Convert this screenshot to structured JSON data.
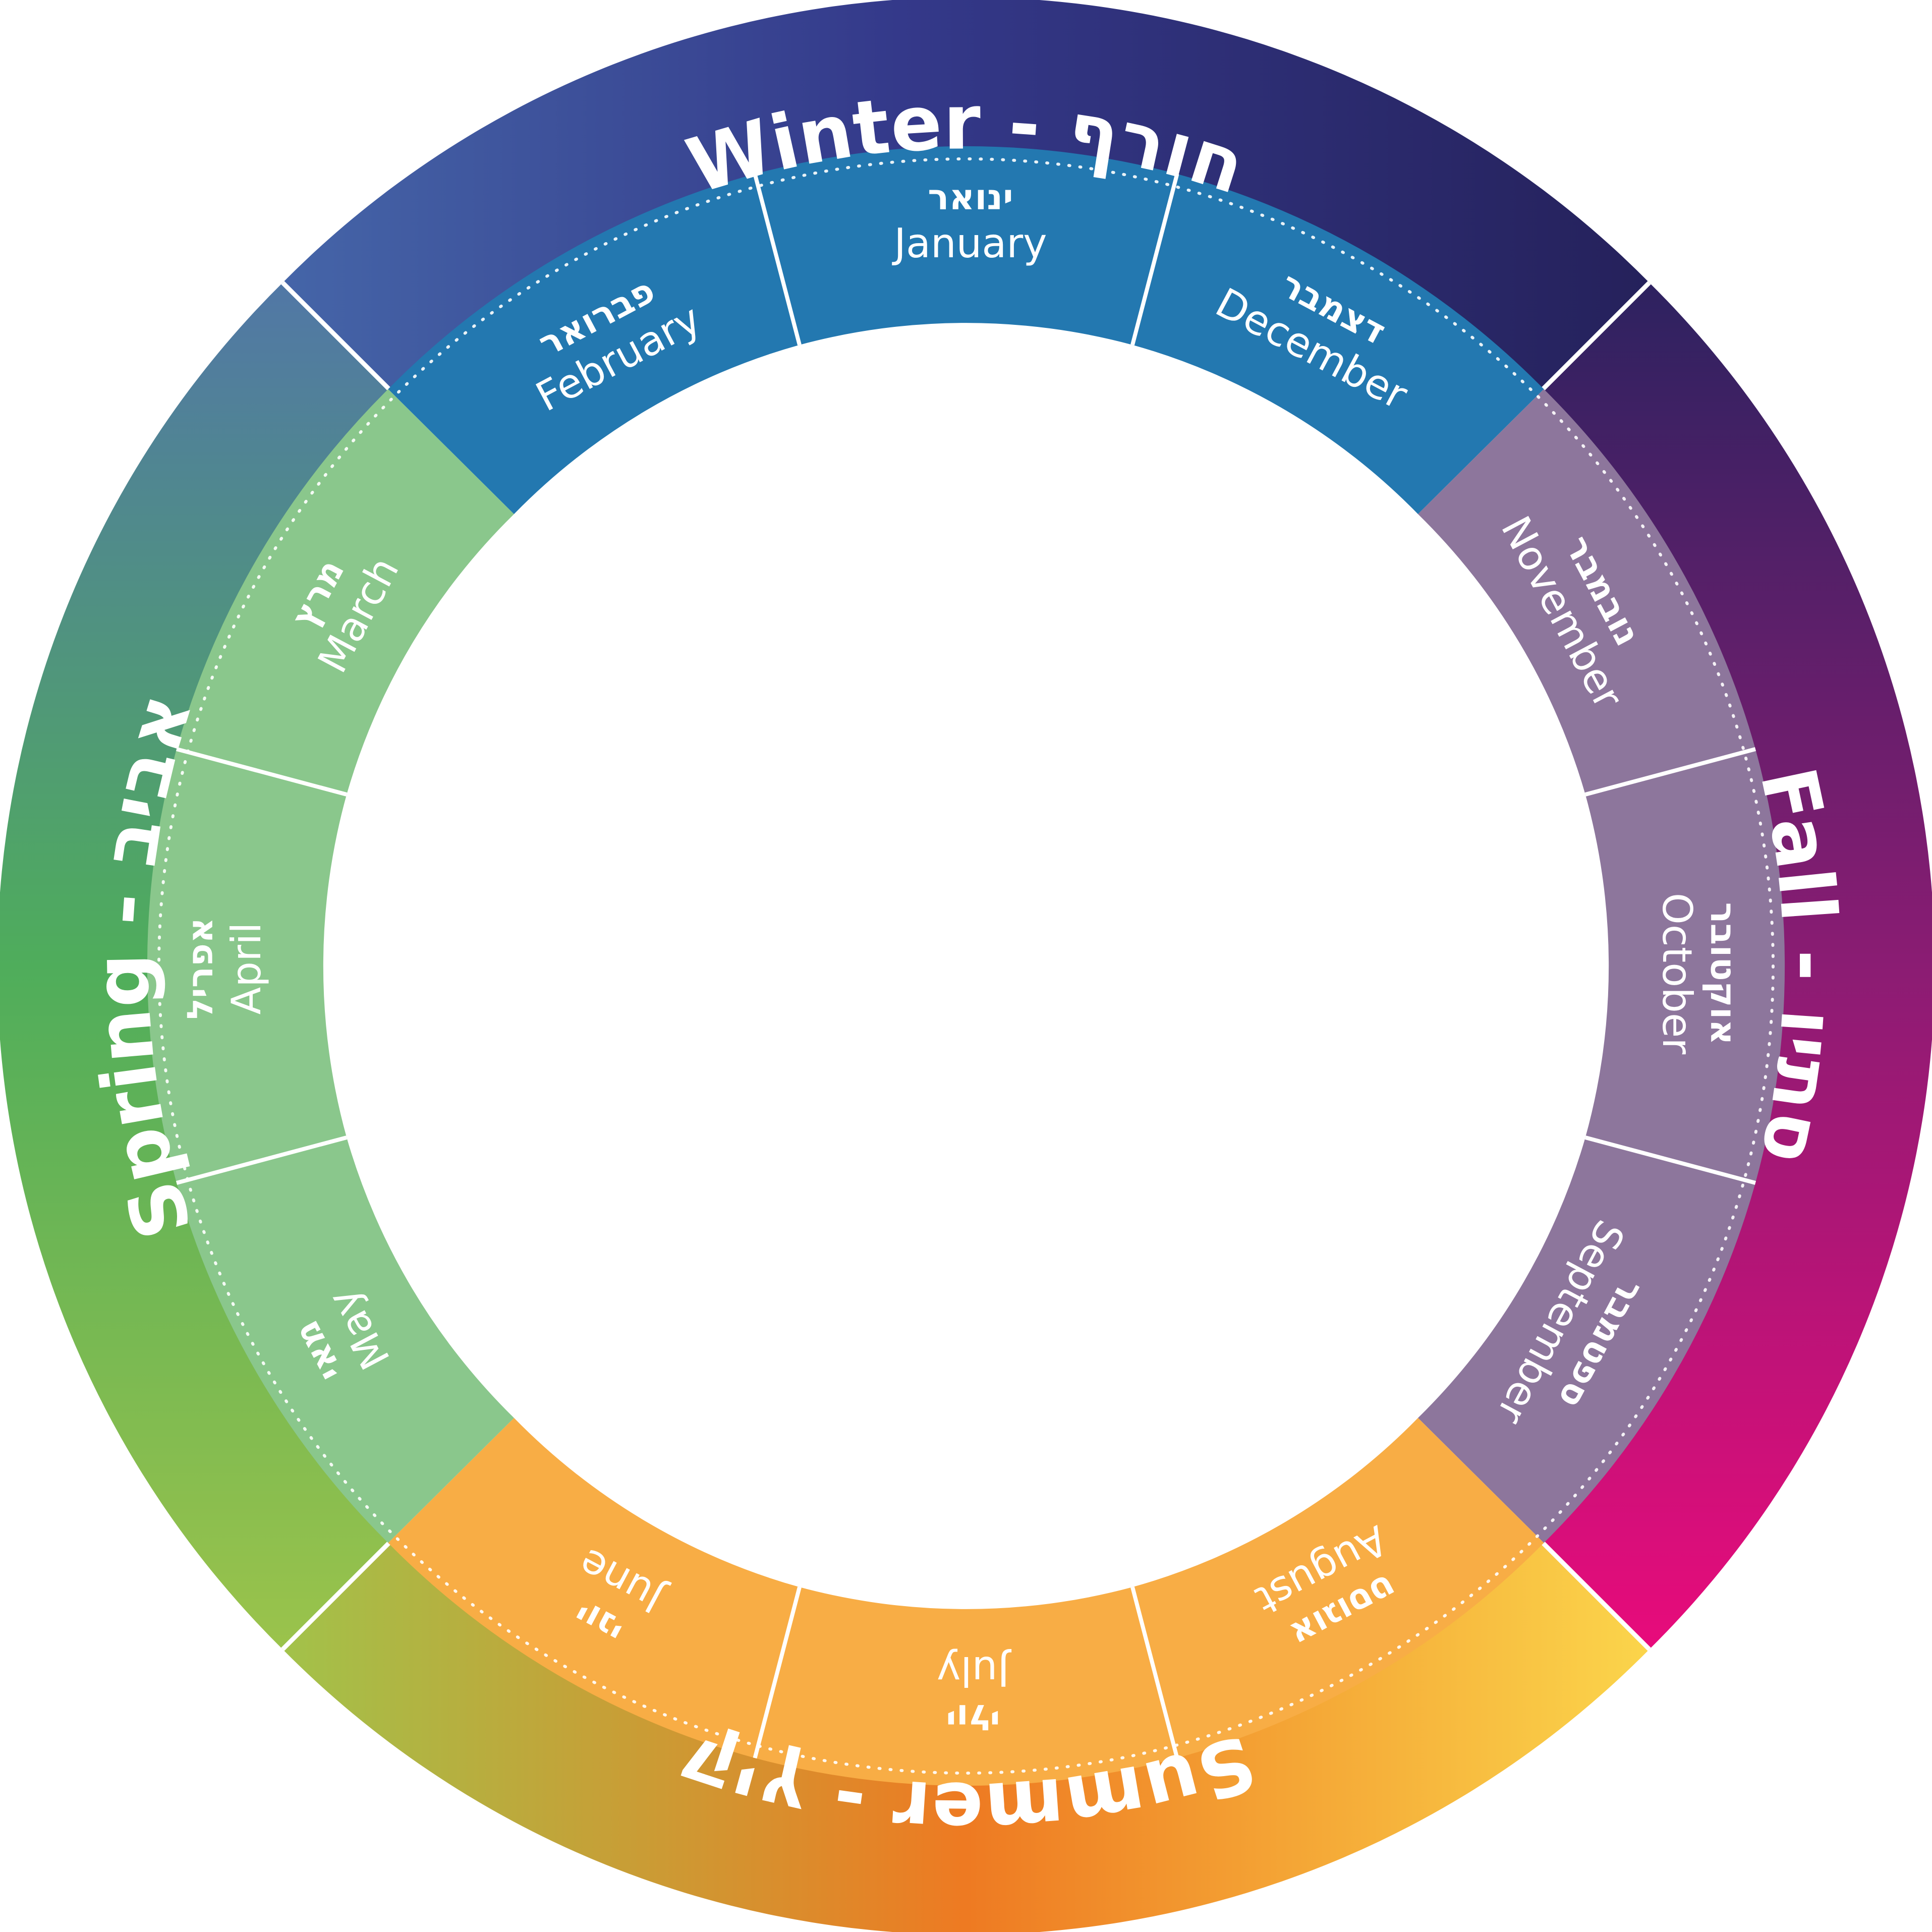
{
  "seasons": [
    {
      "id": "winter",
      "label": "Winter  - חורף"
    },
    {
      "id": "fall",
      "label": "Fall - סתיו"
    },
    {
      "id": "summer",
      "label": "Summer - קיץ"
    },
    {
      "id": "spring",
      "label": "Spring - אביב"
    }
  ],
  "months": [
    {
      "id": "january",
      "he": "ינואר",
      "en": "January",
      "season": "winter"
    },
    {
      "id": "february",
      "he": "פברואר",
      "en": "February",
      "season": "winter"
    },
    {
      "id": "march",
      "he": "מרץ",
      "en": "March",
      "season": "spring"
    },
    {
      "id": "april",
      "he": "אפריל",
      "en": "April",
      "season": "spring"
    },
    {
      "id": "may",
      "he": "מאי",
      "en": "May",
      "season": "spring"
    },
    {
      "id": "june",
      "he": "יוני",
      "en": "June",
      "season": "summer"
    },
    {
      "id": "july",
      "he": "יולי",
      "en": "July",
      "season": "summer"
    },
    {
      "id": "august",
      "he": "אוגוסט",
      "en": "August",
      "season": "summer"
    },
    {
      "id": "september",
      "he": "ספטמבר",
      "en": "September",
      "season": "fall"
    },
    {
      "id": "october",
      "he": "אוקטובר",
      "en": "October",
      "season": "fall"
    },
    {
      "id": "november",
      "he": "נובמבר",
      "en": "November",
      "season": "fall"
    },
    {
      "id": "december",
      "he": "דצמבר",
      "en": "December",
      "season": "winter"
    }
  ],
  "colors": {
    "winter_months": "#2378b0",
    "spring_months": "#8ac78c",
    "summer_months": "#f8ad45",
    "fall_months": "#8d769c",
    "winter_gradient": [
      "#4565a8",
      "#34398a",
      "#25215b"
    ],
    "fall_gradient": [
      "#2d2260",
      "#8b1c73",
      "#e80b7b"
    ],
    "summer_gradient": [
      "#a2c24a",
      "#ee7a22",
      "#fbd54b"
    ],
    "spring_gradient": [
      "#9bc34b",
      "#4fad5b",
      "#5177a6"
    ]
  }
}
